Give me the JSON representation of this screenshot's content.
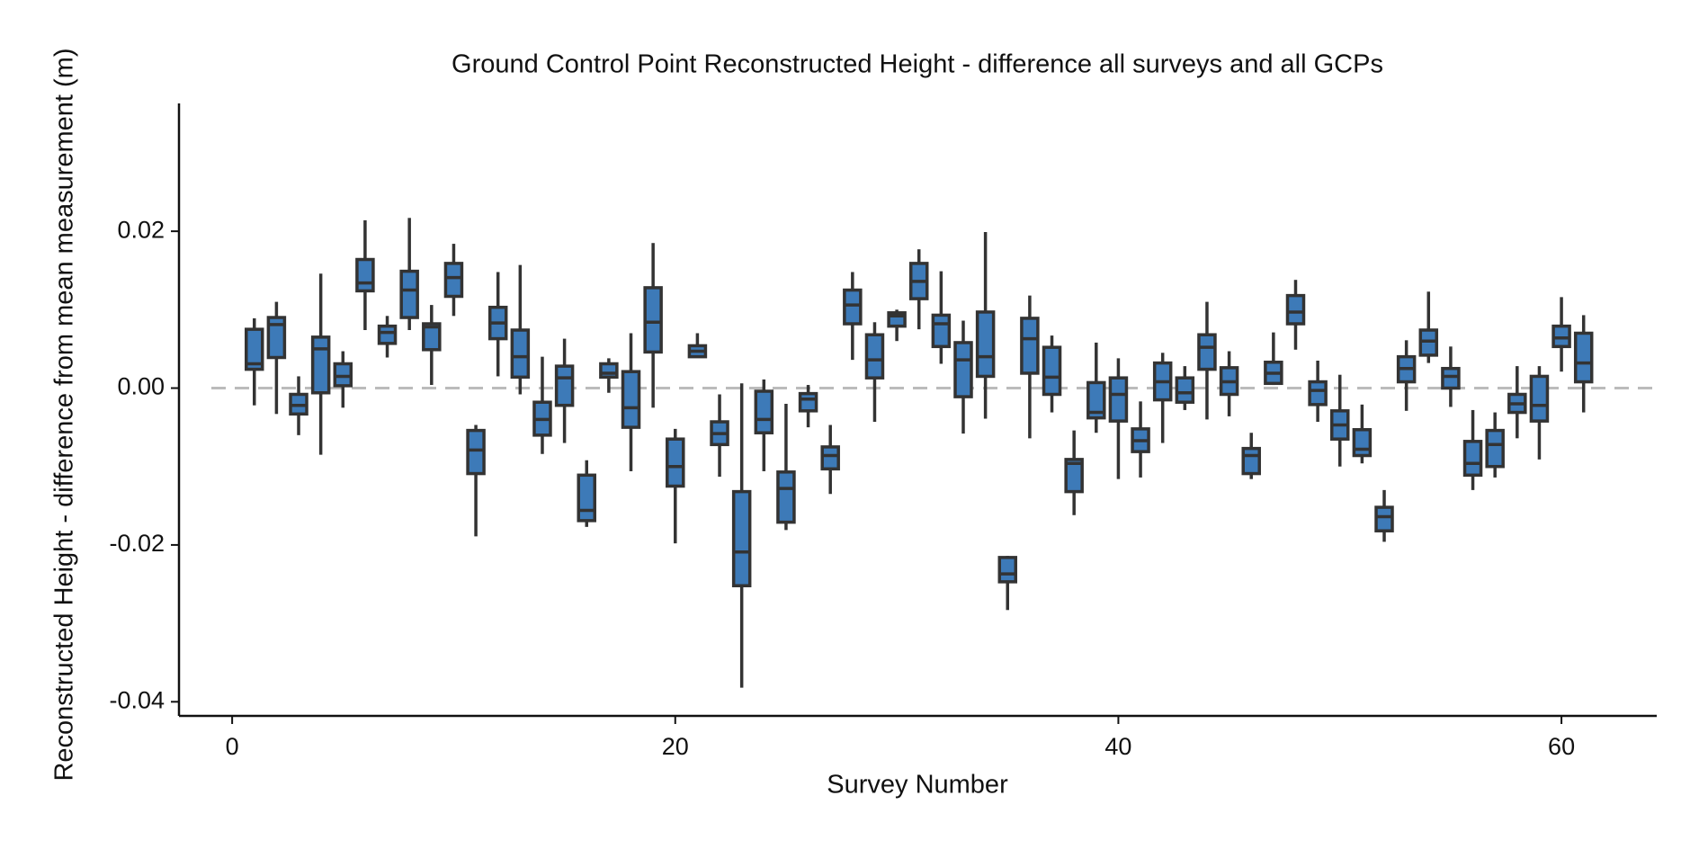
{
  "chart_data": {
    "type": "box",
    "title": "Ground Control Point Reconstructed Height - difference all surveys and all GCPs",
    "x_label": "Survey Number",
    "y_label": "Reconstructed Height - difference from mean measurement (m)",
    "color": "#3d7ab8",
    "reference_line": 0,
    "xlim": [
      -2.4,
      64.3
    ],
    "ylim": [
      -0.0418,
      0.0363
    ],
    "xticks": [
      0,
      20,
      40,
      60
    ],
    "yticks": [
      {
        "value": -0.04,
        "label": "-0.04"
      },
      {
        "value": -0.02,
        "label": "-0.02"
      },
      {
        "value": 0,
        "label": "0.00"
      },
      {
        "value": 0.02,
        "label": "0.02"
      }
    ],
    "x": [
      1,
      2,
      3,
      4,
      5,
      6,
      7,
      8,
      9,
      10,
      11,
      12,
      13,
      14,
      15,
      16,
      17,
      18,
      19,
      20,
      21,
      22,
      23,
      24,
      25,
      26,
      27,
      28,
      29,
      30,
      31,
      32,
      33,
      34,
      35,
      36,
      37,
      38,
      39,
      40,
      41,
      42,
      43,
      44,
      45,
      46,
      47,
      48,
      49,
      50,
      51,
      52,
      53,
      54,
      55,
      56,
      57,
      58,
      59,
      60,
      61
    ],
    "low": [
      -0.0022,
      -0.0033,
      -0.006,
      -0.0085,
      -0.0025,
      0.0074,
      0.0039,
      0.0074,
      0.0004,
      0.0092,
      -0.0189,
      0.0015,
      -0.0008,
      -0.0084,
      -0.007,
      -0.0177,
      -0.0006,
      -0.0106,
      -0.0025,
      -0.0198,
      0.004,
      -0.0113,
      -0.0382,
      -0.0106,
      -0.0181,
      -0.005,
      -0.0135,
      0.0036,
      -0.0043,
      0.006,
      0.0075,
      0.0031,
      -0.0058,
      -0.0039,
      -0.0283,
      -0.0064,
      -0.0031,
      -0.0162,
      -0.0057,
      -0.0116,
      -0.0114,
      -0.007,
      -0.0028,
      -0.004,
      -0.0036,
      -0.0116,
      0.0004,
      0.0049,
      -0.0043,
      -0.01,
      -0.0096,
      -0.0196,
      -0.0029,
      0.0032,
      -0.0024,
      -0.013,
      -0.0114,
      -0.0064,
      -0.0091,
      0.0021,
      -0.0031
    ],
    "q1": [
      0.0024,
      0.0039,
      -0.0033,
      -0.0006,
      0.0003,
      0.0124,
      0.0057,
      0.009,
      0.0049,
      0.0117,
      -0.0109,
      0.0063,
      0.0014,
      -0.006,
      -0.0022,
      -0.0169,
      0.0014,
      -0.005,
      0.0046,
      -0.0125,
      0.004,
      -0.0072,
      -0.0252,
      -0.0057,
      -0.0171,
      -0.0029,
      -0.0103,
      0.0082,
      0.0013,
      0.0079,
      0.0114,
      0.0053,
      -0.0011,
      0.0015,
      -0.0247,
      0.0019,
      -0.0008,
      -0.0132,
      -0.0038,
      -0.0042,
      -0.0081,
      -0.0015,
      -0.0018,
      0.0024,
      -0.0008,
      -0.0109,
      0.0006,
      0.0082,
      -0.0021,
      -0.0065,
      -0.0086,
      -0.0182,
      0.0008,
      0.0042,
      0,
      -0.0111,
      -0.01,
      -0.0031,
      -0.0042,
      0.0053,
      0.0008
    ],
    "median": [
      0.0031,
      0.0081,
      -0.0022,
      0.005,
      0.0015,
      0.0134,
      0.0071,
      0.0125,
      0.0078,
      0.0141,
      -0.0079,
      0.0083,
      0.004,
      -0.004,
      0.0013,
      -0.0156,
      0.0019,
      -0.0025,
      0.0084,
      -0.01,
      0.0047,
      -0.0058,
      -0.0209,
      -0.004,
      -0.0128,
      -0.0014,
      -0.0086,
      0.0106,
      0.0036,
      0.0092,
      0.0136,
      0.0082,
      0.0036,
      0.004,
      -0.0237,
      0.0063,
      0.0014,
      -0.0096,
      -0.0031,
      -0.0008,
      -0.0067,
      0.0008,
      -0.0006,
      0.0052,
      0.0008,
      -0.0086,
      0.0019,
      0.0097,
      -0.0003,
      -0.0047,
      -0.0078,
      -0.0164,
      0.0025,
      0.006,
      0.0015,
      -0.0096,
      -0.0072,
      -0.002,
      -0.0022,
      0.0064,
      0.0032
    ],
    "q3": [
      0.0075,
      0.009,
      -0.0008,
      0.0065,
      0.0031,
      0.0164,
      0.0079,
      0.0149,
      0.0082,
      0.0159,
      -0.0054,
      0.0103,
      0.0074,
      -0.0018,
      0.0028,
      -0.0111,
      0.0031,
      0.0021,
      0.0128,
      -0.0065,
      0.0054,
      -0.0043,
      -0.0132,
      -0.0004,
      -0.0107,
      -0.0007,
      -0.0075,
      0.0125,
      0.0068,
      0.0096,
      0.0159,
      0.0093,
      0.0058,
      0.0097,
      -0.0216,
      0.0089,
      0.0052,
      -0.0091,
      0.0007,
      0.0013,
      -0.0052,
      0.0032,
      0.0013,
      0.0068,
      0.0026,
      -0.0077,
      0.0033,
      0.0118,
      0.0008,
      -0.0029,
      -0.0053,
      -0.0152,
      0.004,
      0.0074,
      0.0025,
      -0.0068,
      -0.0054,
      -0.0008,
      0.0015,
      0.0079,
      0.007
    ],
    "high": [
      0.0089,
      0.011,
      0.0015,
      0.0146,
      0.0047,
      0.0214,
      0.0092,
      0.0217,
      0.0106,
      0.0184,
      -0.0047,
      0.0148,
      0.0157,
      0.004,
      0.0063,
      -0.0092,
      0.0038,
      0.007,
      0.0185,
      -0.0052,
      0.007,
      -0.0008,
      0.0006,
      0.0011,
      -0.002,
      0.0004,
      -0.0047,
      0.0148,
      0.0084,
      0.01,
      0.0177,
      0.0149,
      0.0086,
      0.0199,
      -0.0214,
      0.0118,
      0.0067,
      -0.0054,
      0.0058,
      0.0038,
      -0.0017,
      0.0045,
      0.0028,
      0.011,
      0.0047,
      -0.0057,
      0.0071,
      0.0138,
      0.0035,
      0.0017,
      -0.0021,
      -0.013,
      0.0061,
      0.0123,
      0.0053,
      -0.0028,
      -0.0031,
      0.0028,
      0.0028,
      0.0116,
      0.0093
    ]
  }
}
